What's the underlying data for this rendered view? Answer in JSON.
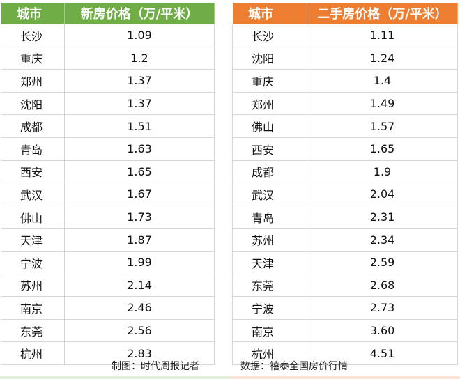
{
  "left": {
    "header": {
      "city": "城市",
      "price": "新房价格（万/平米）"
    },
    "rows": [
      {
        "city": "长沙",
        "price": "1.09"
      },
      {
        "city": "重庆",
        "price": "1.2"
      },
      {
        "city": "郑州",
        "price": "1.37"
      },
      {
        "city": "沈阳",
        "price": "1.37"
      },
      {
        "city": "成都",
        "price": "1.51"
      },
      {
        "city": "青岛",
        "price": "1.63"
      },
      {
        "city": "西安",
        "price": "1.65"
      },
      {
        "city": "武汉",
        "price": "1.67"
      },
      {
        "city": "佛山",
        "price": "1.73"
      },
      {
        "city": "天津",
        "price": "1.87"
      },
      {
        "city": "宁波",
        "price": "1.99"
      },
      {
        "city": "苏州",
        "price": "2.14"
      },
      {
        "city": "南京",
        "price": "2.46"
      },
      {
        "city": "东莞",
        "price": "2.56"
      },
      {
        "city": "杭州",
        "price": "2.83"
      }
    ]
  },
  "right": {
    "header": {
      "city": "城市",
      "price": "二手房价格（万/平米）"
    },
    "rows": [
      {
        "city": "长沙",
        "price": "1.11"
      },
      {
        "city": "沈阳",
        "price": "1.24"
      },
      {
        "city": "重庆",
        "price": "1.4"
      },
      {
        "city": "郑州",
        "price": "1.49"
      },
      {
        "city": "佛山",
        "price": "1.57"
      },
      {
        "city": "西安",
        "price": "1.65"
      },
      {
        "city": "成都",
        "price": "1.9"
      },
      {
        "city": "武汉",
        "price": "2.04"
      },
      {
        "city": "青岛",
        "price": "2.31"
      },
      {
        "city": "苏州",
        "price": "2.34"
      },
      {
        "city": "天津",
        "price": "2.59"
      },
      {
        "city": "东莞",
        "price": "2.68"
      },
      {
        "city": "宁波",
        "price": "2.73"
      },
      {
        "city": "南京",
        "price": "3.60"
      },
      {
        "city": "杭州",
        "price": "4.51"
      }
    ]
  },
  "footer": {
    "maker": "制图：时代周报记者",
    "source": "数据：禧泰全国房价行情"
  },
  "colors": {
    "left_header": "#70ad47",
    "right_header": "#ed7d31"
  }
}
